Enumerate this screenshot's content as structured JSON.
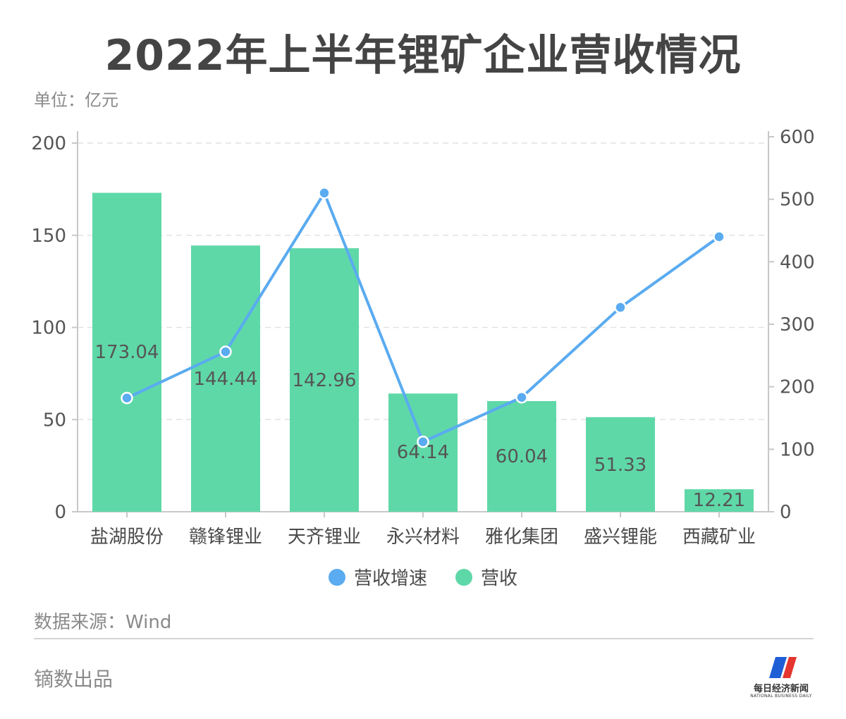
{
  "title": "2022年上半年锂矿企业营收情况",
  "unit_label": "单位：亿元",
  "source": "数据来源：Wind",
  "producer": "镝数出品",
  "logo": {
    "text": "每日经济新闻",
    "subtext": "NATIONAL BUSINESS DAILY",
    "colors": [
      "#1f5fd6",
      "#e5352f"
    ]
  },
  "chart_data": {
    "type": "bar",
    "categories": [
      "盐湖股份",
      "赣锋锂业",
      "天齐锂业",
      "永兴材料",
      "雅化集团",
      "盛兴锂能",
      "西藏矿业"
    ],
    "series": [
      {
        "name": "营收",
        "type": "bar",
        "axis": "left",
        "color": "#5fd8a8",
        "values": [
          173.04,
          144.44,
          142.96,
          64.14,
          60.04,
          51.33,
          12.21
        ],
        "labels": [
          "173.04",
          "144.44",
          "142.96",
          "64.14",
          "60.04",
          "51.33",
          "12.21"
        ]
      },
      {
        "name": "营收增速",
        "type": "line",
        "axis": "right",
        "color": "#5aabf0",
        "values": [
          182,
          256,
          510,
          112,
          183,
          null,
          440
        ]
      }
    ],
    "right_extra_point": {
      "category_index": 5,
      "value": 327
    },
    "y_left": {
      "min": 0,
      "max": 200,
      "ticks": [
        0,
        50,
        100,
        150,
        200
      ]
    },
    "y_right": {
      "min": 0,
      "max": 600,
      "ticks": [
        0,
        100,
        200,
        300,
        400,
        500,
        600
      ]
    },
    "grid": true,
    "legend": {
      "position": "bottom",
      "items": [
        "营收增速",
        "营收"
      ]
    }
  }
}
